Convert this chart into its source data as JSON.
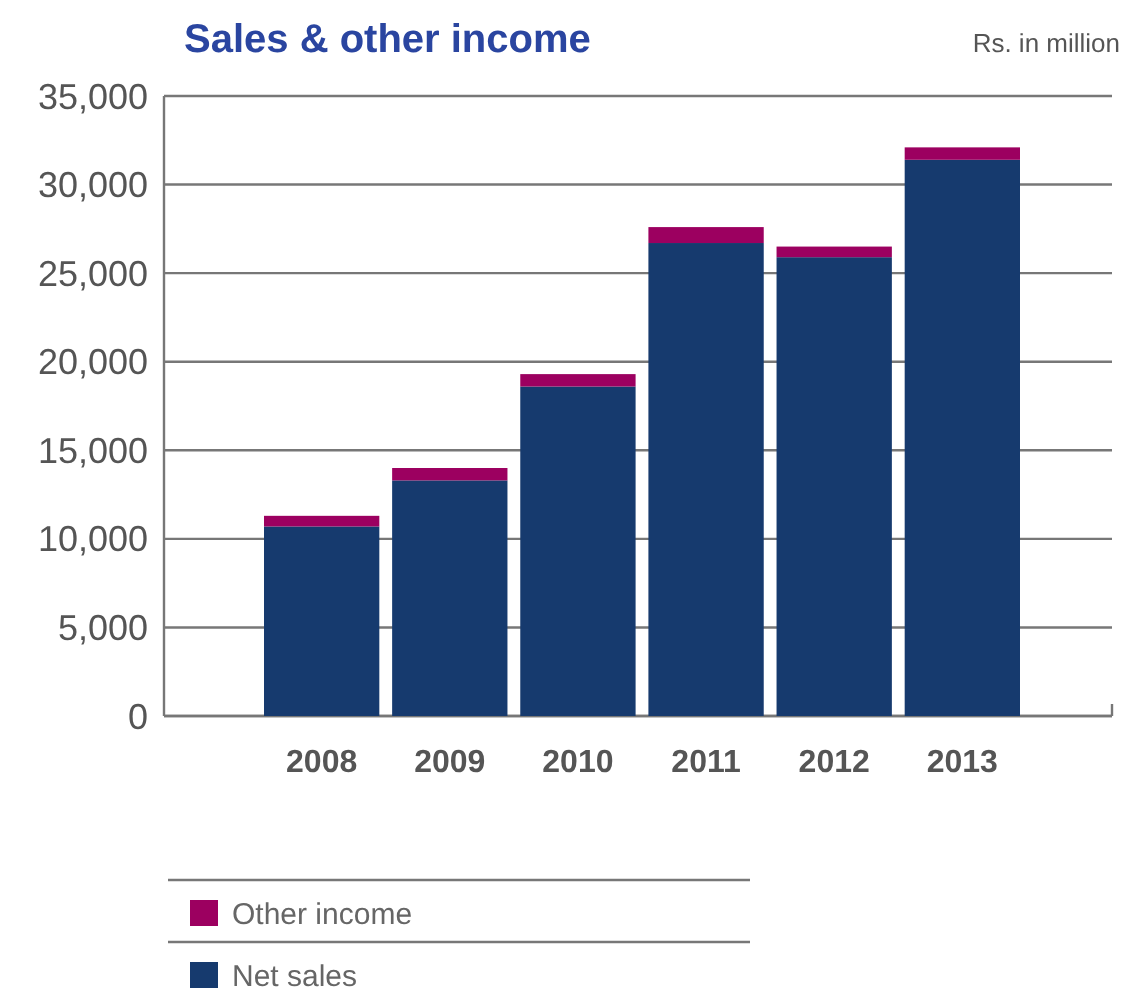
{
  "chart_data": {
    "type": "bar",
    "title": "Sales & other income",
    "subtitle": "Rs. in million",
    "categories": [
      "2008",
      "2009",
      "2010",
      "2011",
      "2012",
      "2013"
    ],
    "stacked": true,
    "series": [
      {
        "name": "Net sales",
        "color": "#163a6e",
        "values": [
          10700,
          13300,
          18600,
          26700,
          25900,
          31400
        ]
      },
      {
        "name": "Other income",
        "color": "#9c0060",
        "values": [
          600,
          700,
          700,
          900,
          600,
          700
        ]
      }
    ],
    "ylim": [
      0,
      35000
    ],
    "yticks": [
      {
        "value": 0,
        "label": "0"
      },
      {
        "value": 5000,
        "label": "5,000"
      },
      {
        "value": 10000,
        "label": "10,000"
      },
      {
        "value": 15000,
        "label": "15,000"
      },
      {
        "value": 20000,
        "label": "20,000"
      },
      {
        "value": 25000,
        "label": "25,000"
      },
      {
        "value": 30000,
        "label": "30,000"
      },
      {
        "value": 35000,
        "label": "35,000"
      }
    ],
    "grid": "y",
    "legend": "bottom"
  }
}
